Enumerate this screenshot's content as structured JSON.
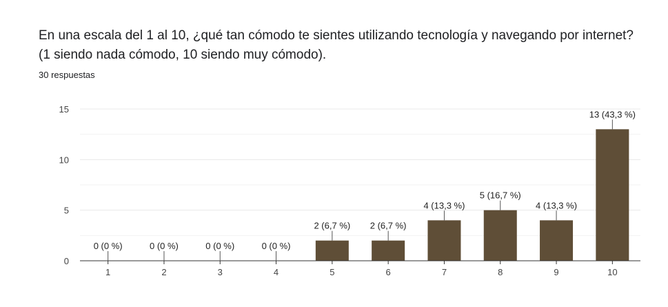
{
  "question": {
    "title": "En una escala del 1 al 10, ¿qué tan cómodo te sientes utilizando tecnología y navegando por internet? (1 siendo nada cómodo, 10 siendo muy cómodo).",
    "responses": "30 respuestas"
  },
  "colors": {
    "bar": "#5f4e37",
    "grid": "#e8e8e8",
    "axis": "#333333",
    "leader": "#555555"
  },
  "chart_data": {
    "type": "bar",
    "title": "",
    "xlabel": "",
    "ylabel": "",
    "categories": [
      "1",
      "2",
      "3",
      "4",
      "5",
      "6",
      "7",
      "8",
      "9",
      "10"
    ],
    "values": [
      0,
      0,
      0,
      0,
      2,
      2,
      4,
      5,
      4,
      13
    ],
    "data_labels": [
      "0 (0 %)",
      "0 (0 %)",
      "0 (0 %)",
      "0 (0 %)",
      "2 (6,7 %)",
      "2 (6,7 %)",
      "4 (13,3 %)",
      "5 (16,7 %)",
      "4 (13,3 %)",
      "13 (43,3 %)"
    ],
    "ylim": [
      0,
      15
    ],
    "yticks": [
      0,
      5,
      10,
      15
    ],
    "grid": true,
    "legend": "none"
  }
}
